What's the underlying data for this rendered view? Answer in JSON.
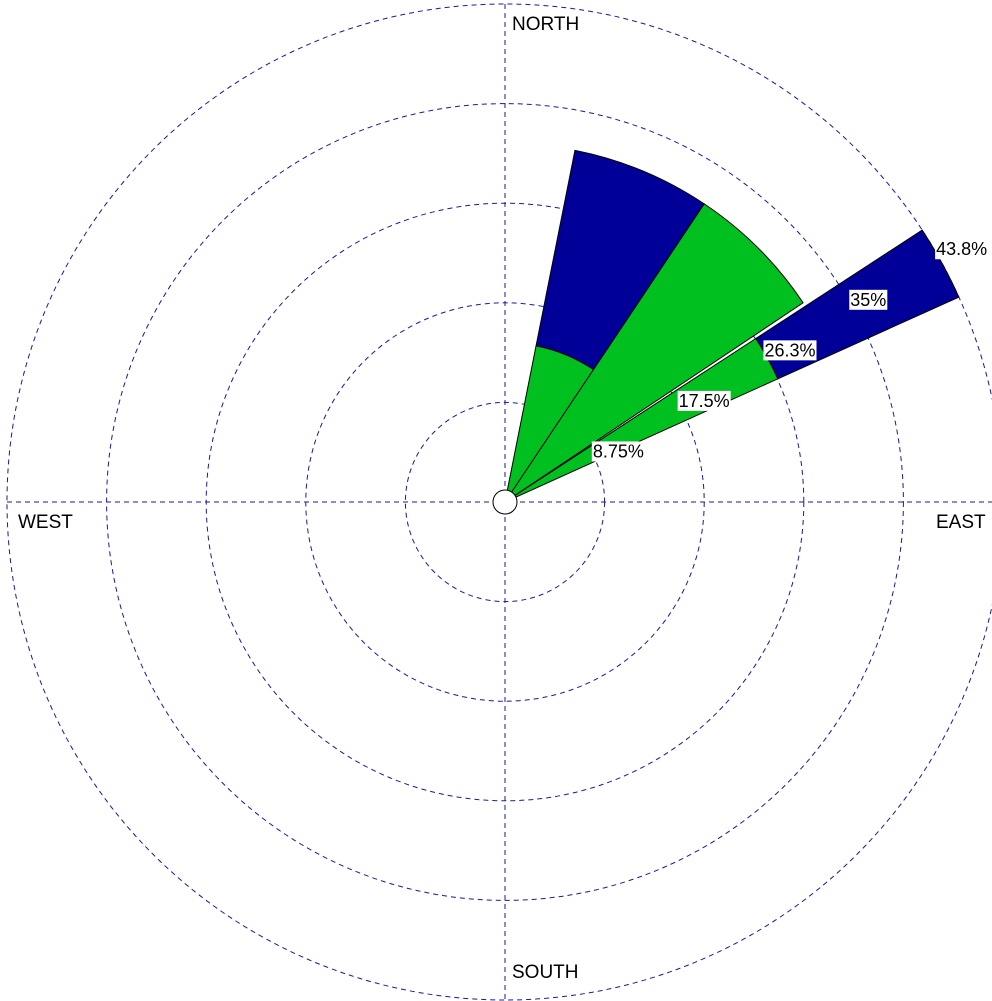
{
  "chart_data": {
    "type": "wind-rose",
    "directions": {
      "north": "NORTH",
      "east": "EAST",
      "south": "SOUTH",
      "west": "WEST"
    },
    "ring_labels": [
      "8.75%",
      "17.5%",
      "26.3%",
      "35%",
      "43.8%"
    ],
    "ring_values": [
      8.75,
      17.5,
      26.25,
      35,
      43.75
    ],
    "rmax": 43.75,
    "grid": true,
    "sectors": [
      {
        "center_deg": 22.5,
        "width_deg": 22.5,
        "segments": [
          {
            "from": 0,
            "to": 14,
            "color": "#00c020"
          },
          {
            "from": 14,
            "to": 31.5,
            "color": "#000099"
          }
        ]
      },
      {
        "center_deg": 45,
        "width_deg": 22.5,
        "segments": [
          {
            "from": 0,
            "to": 31.5,
            "color": "#00c020"
          }
        ]
      },
      {
        "center_deg": 61.3,
        "width_deg": 8.8,
        "segments": [
          {
            "from": 0,
            "to": 26.3,
            "color": "#00c020"
          },
          {
            "from": 26.3,
            "to": 43.75,
            "color": "#000099"
          }
        ]
      }
    ]
  }
}
